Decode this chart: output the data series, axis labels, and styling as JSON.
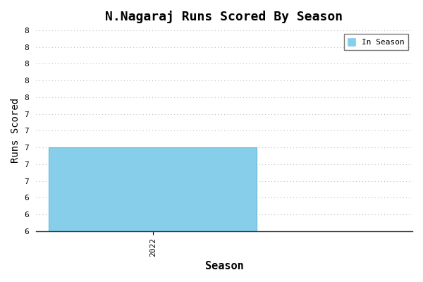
{
  "title": "N.Nagaraj Runs Scored By Season",
  "xlabel": "Season",
  "ylabel": "Runs Scored",
  "seasons": [
    2022
  ],
  "values": [
    7
  ],
  "bar_color": "#87CEEB",
  "bar_edgecolor": "#6BB8D4",
  "ylim_min": 6,
  "ylim_max": 8.4,
  "ytick_step": 0.2,
  "legend_label": "In Season",
  "background_color": "#ffffff",
  "grid_color": "#bbbbbb",
  "font_family": "monospace",
  "bar_xlim_min": 2021.55,
  "bar_xlim_max": 2023.0,
  "bar_width": 0.8
}
